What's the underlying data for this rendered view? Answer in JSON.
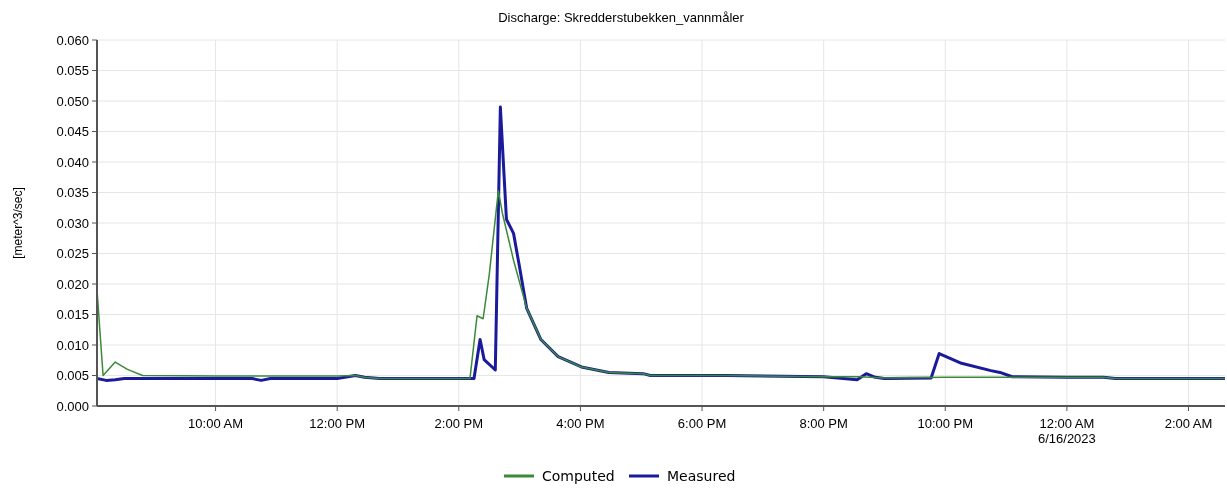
{
  "chart_data": {
    "type": "line",
    "title": "Discharge: Skredderstubekken_vannmåler",
    "ylabel": "[meter^3/sec]",
    "xlim": [
      "2023-06-15T08:03",
      "2023-06-16T02:36"
    ],
    "ylim": [
      0,
      0.06
    ],
    "xticks": [
      {
        "value": "2023-06-15T10:00",
        "label": "10:00 AM"
      },
      {
        "value": "2023-06-15T12:00",
        "label": "12:00 PM"
      },
      {
        "value": "2023-06-15T14:00",
        "label": "2:00 PM"
      },
      {
        "value": "2023-06-15T16:00",
        "label": "4:00 PM"
      },
      {
        "value": "2023-06-15T18:00",
        "label": "6:00 PM"
      },
      {
        "value": "2023-06-15T20:00",
        "label": "8:00 PM"
      },
      {
        "value": "2023-06-15T22:00",
        "label": "10:00 PM"
      },
      {
        "value": "2023-06-16T00:00",
        "label": "12:00 AM\n6/16/2023"
      },
      {
        "value": "2023-06-16T02:00",
        "label": "2:00 AM"
      }
    ],
    "yticks": [
      {
        "value": 0,
        "label": "0.000"
      },
      {
        "value": 0.005,
        "label": "0.005"
      },
      {
        "value": 0.01,
        "label": "0.010"
      },
      {
        "value": 0.015,
        "label": "0.015"
      },
      {
        "value": 0.02,
        "label": "0.020"
      },
      {
        "value": 0.025,
        "label": "0.025"
      },
      {
        "value": 0.03,
        "label": "0.030"
      },
      {
        "value": 0.035,
        "label": "0.035"
      },
      {
        "value": 0.04,
        "label": "0.040"
      },
      {
        "value": 0.045,
        "label": "0.045"
      },
      {
        "value": 0.05,
        "label": "0.050"
      },
      {
        "value": 0.055,
        "label": "0.055"
      },
      {
        "value": 0.06,
        "label": "0.060"
      }
    ],
    "grid": true,
    "legend": "bottom",
    "line_style": "solid",
    "series": [
      {
        "name": "Computed",
        "color": "#3a8a3a",
        "x": [
          "2023-06-15T08:03",
          "2023-06-15T08:09",
          "2023-06-15T08:21",
          "2023-06-15T08:33",
          "2023-06-15T08:48",
          "2023-06-15T10:00",
          "2023-06-15T12:00",
          "2023-06-15T12:18",
          "2023-06-15T12:27",
          "2023-06-15T12:42",
          "2023-06-15T14:00",
          "2023-06-15T14:11",
          "2023-06-15T14:18",
          "2023-06-15T14:24",
          "2023-06-15T14:30",
          "2023-06-15T14:39",
          "2023-06-15T14:43",
          "2023-06-15T14:54",
          "2023-06-15T15:07",
          "2023-06-15T15:21",
          "2023-06-15T15:38",
          "2023-06-15T16:01",
          "2023-06-15T16:28",
          "2023-06-15T17:02",
          "2023-06-15T17:09",
          "2023-06-15T18:24",
          "2023-06-15T20:00",
          "2023-06-15T20:36",
          "2023-06-15T21:00",
          "2023-06-15T22:00",
          "2023-06-16T00:00",
          "2023-06-16T00:36",
          "2023-06-16T00:48",
          "2023-06-16T02:36"
        ],
        "values": [
          0.019,
          0.005,
          0.0072,
          0.006,
          0.005,
          0.0049,
          0.0049,
          0.005,
          0.0047,
          0.0045,
          0.0045,
          0.0045,
          0.0148,
          0.0143,
          0.0215,
          0.0353,
          0.0316,
          0.0239,
          0.016,
          0.0109,
          0.0081,
          0.0064,
          0.0055,
          0.0053,
          0.005,
          0.005,
          0.0048,
          0.0048,
          0.0046,
          0.0047,
          0.0047,
          0.0047,
          0.0045,
          0.0045
        ]
      },
      {
        "name": "Measured",
        "color": "#1a1a9a",
        "x": [
          "2023-06-15T08:03",
          "2023-06-15T08:12",
          "2023-06-15T08:21",
          "2023-06-15T08:30",
          "2023-06-15T10:00",
          "2023-06-15T10:36",
          "2023-06-15T10:45",
          "2023-06-15T10:54",
          "2023-06-15T12:00",
          "2023-06-15T12:18",
          "2023-06-15T12:27",
          "2023-06-15T12:42",
          "2023-06-15T14:00",
          "2023-06-15T14:15",
          "2023-06-15T14:21",
          "2023-06-15T14:25",
          "2023-06-15T14:36",
          "2023-06-15T14:41",
          "2023-06-15T14:47",
          "2023-06-15T14:54",
          "2023-06-15T15:00",
          "2023-06-15T15:07",
          "2023-06-15T15:21",
          "2023-06-15T15:38",
          "2023-06-15T16:01",
          "2023-06-15T16:28",
          "2023-06-15T17:02",
          "2023-06-15T17:09",
          "2023-06-15T18:24",
          "2023-06-15T20:00",
          "2023-06-15T20:33",
          "2023-06-15T20:42",
          "2023-06-15T20:51",
          "2023-06-15T21:00",
          "2023-06-15T21:46",
          "2023-06-15T21:54",
          "2023-06-15T22:16",
          "2023-06-15T22:45",
          "2023-06-15T22:54",
          "2023-06-15T23:06",
          "2023-06-16T00:00",
          "2023-06-16T00:36",
          "2023-06-16T00:48",
          "2023-06-16T02:36"
        ],
        "values": [
          0.0045,
          0.0042,
          0.0043,
          0.0045,
          0.0045,
          0.0045,
          0.0042,
          0.0045,
          0.0045,
          0.005,
          0.0047,
          0.0045,
          0.0045,
          0.0045,
          0.0109,
          0.0076,
          0.0059,
          0.049,
          0.0306,
          0.0283,
          0.0227,
          0.016,
          0.0109,
          0.0081,
          0.0064,
          0.0055,
          0.0053,
          0.005,
          0.005,
          0.0048,
          0.0043,
          0.0053,
          0.0047,
          0.0045,
          0.0046,
          0.0086,
          0.007,
          0.0058,
          0.0055,
          0.0048,
          0.0047,
          0.0047,
          0.0045,
          0.0045
        ]
      }
    ]
  }
}
